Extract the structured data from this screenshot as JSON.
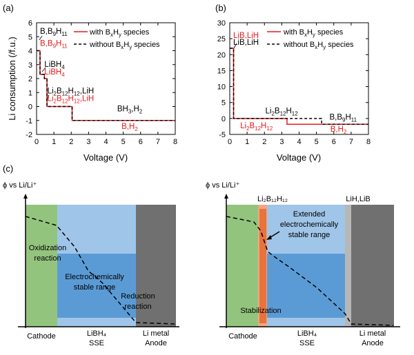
{
  "panel_a": {
    "label": "(a)",
    "xlabel": "Voltage (V)",
    "ylabel": "Li consumption (/f.u.)",
    "legend": {
      "with_prefix": "with B",
      "without_prefix": "without B",
      "sub_x": "x",
      "mid": "H",
      "sub_y": "y",
      "suffix": " species"
    },
    "annotations": [
      {
        "parts": [
          [
            "B,B",
            ""
          ],
          [
            "9",
            "sub"
          ],
          [
            "H",
            ""
          ],
          [
            "11",
            "sub"
          ]
        ],
        "color": "black"
      },
      {
        "parts": [
          [
            "B,B",
            ""
          ],
          [
            "9",
            "sub"
          ],
          [
            "H",
            ""
          ],
          [
            "11",
            "sub"
          ]
        ],
        "color": "red"
      },
      {
        "parts": [
          [
            "LiBH",
            ""
          ],
          [
            "4",
            "sub"
          ]
        ],
        "color": "black"
      },
      {
        "parts": [
          [
            "LiBH",
            ""
          ],
          [
            "4",
            "sub"
          ]
        ],
        "color": "red"
      },
      {
        "parts": [
          [
            "Li",
            ""
          ],
          [
            "2",
            "sub"
          ],
          [
            "B",
            ""
          ],
          [
            "12",
            "sub"
          ],
          [
            "H",
            ""
          ],
          [
            "12",
            "sub"
          ],
          [
            ",LiH",
            ""
          ]
        ],
        "color": "black"
      },
      {
        "parts": [
          [
            "Li",
            ""
          ],
          [
            "2",
            "sub"
          ],
          [
            "B",
            ""
          ],
          [
            "12",
            "sub"
          ],
          [
            "H",
            ""
          ],
          [
            "12",
            "sub"
          ],
          [
            ",LiH",
            ""
          ]
        ],
        "color": "red"
      },
      {
        "parts": [
          [
            "BH",
            ""
          ],
          [
            "3",
            "sub"
          ],
          [
            ",H",
            ""
          ],
          [
            "2",
            "sub"
          ]
        ],
        "color": "black"
      },
      {
        "parts": [
          [
            "B,H",
            ""
          ],
          [
            "2",
            "sub"
          ]
        ],
        "color": "red"
      }
    ]
  },
  "panel_b": {
    "label": "(b)",
    "xlabel": "Voltage (V)",
    "legend": {
      "with_prefix": "with B",
      "without_prefix": "without B",
      "sub_x": "x",
      "mid": "H",
      "sub_y": "y",
      "suffix": " species"
    },
    "annotations": [
      {
        "parts": [
          [
            "LiB,LiH",
            ""
          ]
        ],
        "color": "red"
      },
      {
        "parts": [
          [
            "LiB,LiH",
            ""
          ]
        ],
        "color": "black"
      },
      {
        "parts": [
          [
            "Li",
            ""
          ],
          [
            "2",
            "sub"
          ],
          [
            "B",
            ""
          ],
          [
            "12",
            "sub"
          ],
          [
            "H",
            ""
          ],
          [
            "12",
            "sub"
          ]
        ],
        "color": "black"
      },
      {
        "parts": [
          [
            "Li",
            ""
          ],
          [
            "2",
            "sub"
          ],
          [
            "B",
            ""
          ],
          [
            "12",
            "sub"
          ],
          [
            "H",
            ""
          ],
          [
            "12",
            "sub"
          ]
        ],
        "color": "red"
      },
      {
        "parts": [
          [
            "B,B",
            ""
          ],
          [
            "9",
            "sub"
          ],
          [
            "H",
            ""
          ],
          [
            "11",
            "sub"
          ]
        ],
        "color": "black"
      },
      {
        "parts": [
          [
            "B,H",
            ""
          ],
          [
            "2",
            "sub"
          ]
        ],
        "color": "red"
      }
    ]
  },
  "panel_c": {
    "label": "(c)",
    "left": {
      "ylabel": "ϕ vs Li/Li⁺",
      "oxidization": [
        "Oxidization",
        "reaction"
      ],
      "stable": [
        "Electrochemically",
        "stable range"
      ],
      "reduction": [
        "Reduction",
        "reaction"
      ],
      "cathode": "Cathode",
      "sse": [
        "LiBH₄",
        "SSE"
      ],
      "anode": [
        "Li metal",
        "Anode"
      ]
    },
    "right": {
      "ylabel": "ϕ vs Li/Li⁺",
      "top_left": "Li₂B₁₂H₁₂",
      "top_right": "LiH,LiB",
      "extended": [
        "Extended",
        "electrochemically",
        "stable range"
      ],
      "stabilization": "Stabilization",
      "cathode": "Cathode",
      "sse": [
        "LiBH₄",
        "SSE"
      ],
      "anode": [
        "Li metal",
        "Anode"
      ]
    }
  },
  "colors": {
    "with": "#e8191c",
    "without": "#000000",
    "cathode": "#93c47d",
    "sse_light": "#9fc5e8",
    "sse_dark": "#5b9bd5",
    "anode": "#707070",
    "stabilization": "#e8733b",
    "lihlib": "#b7b7b7"
  },
  "chart_data": [
    {
      "type": "line",
      "xlabel": "Voltage (V)",
      "ylabel": "Li consumption (/f.u.)",
      "xlim": [
        0,
        8
      ],
      "ylim": [
        -2,
        6
      ],
      "xticks": [
        0,
        1,
        2,
        3,
        4,
        5,
        6,
        7,
        8
      ],
      "yticks": [
        -2,
        -1,
        0,
        1,
        2,
        3,
        4,
        5,
        6
      ],
      "series": [
        {
          "name": "with BxHy species",
          "style": "solid",
          "color": "#e8191c",
          "x": [
            0,
            0.2,
            0.2,
            0.45,
            0.45,
            0.6,
            0.6,
            2.05,
            2.05,
            8
          ],
          "y": [
            4,
            4,
            2.3,
            2.3,
            2.0,
            2.0,
            0,
            0,
            -1,
            -1
          ]
        },
        {
          "name": "without BxHy species",
          "style": "dashed",
          "color": "#000000",
          "x": [
            0,
            0.2,
            0.2,
            0.45,
            0.45,
            0.6,
            0.6,
            2.05,
            2.05,
            8
          ],
          "y": [
            4,
            4,
            2.3,
            2.3,
            2.0,
            2.0,
            0,
            0,
            -1,
            -1
          ]
        }
      ]
    },
    {
      "type": "line",
      "xlabel": "Voltage (V)",
      "xlim": [
        0,
        8
      ],
      "ylim": [
        -5,
        30
      ],
      "xticks": [
        0,
        1,
        2,
        3,
        4,
        5,
        6,
        7,
        8
      ],
      "yticks": [
        -5,
        0,
        5,
        10,
        15,
        20,
        25,
        30
      ],
      "series": [
        {
          "name": "with BxHy species",
          "style": "solid",
          "color": "#e8191c",
          "x": [
            0,
            0.22,
            0.22,
            3.3,
            3.3,
            8
          ],
          "y": [
            22,
            22,
            0,
            0,
            -1.8,
            -1.8
          ]
        },
        {
          "name": "without BxHy species",
          "style": "dashed",
          "color": "#000000",
          "x": [
            0,
            0.22,
            0.22,
            5.3,
            5.3,
            8
          ],
          "y": [
            22,
            22,
            0,
            0,
            -1.8,
            -1.8
          ]
        }
      ]
    }
  ]
}
